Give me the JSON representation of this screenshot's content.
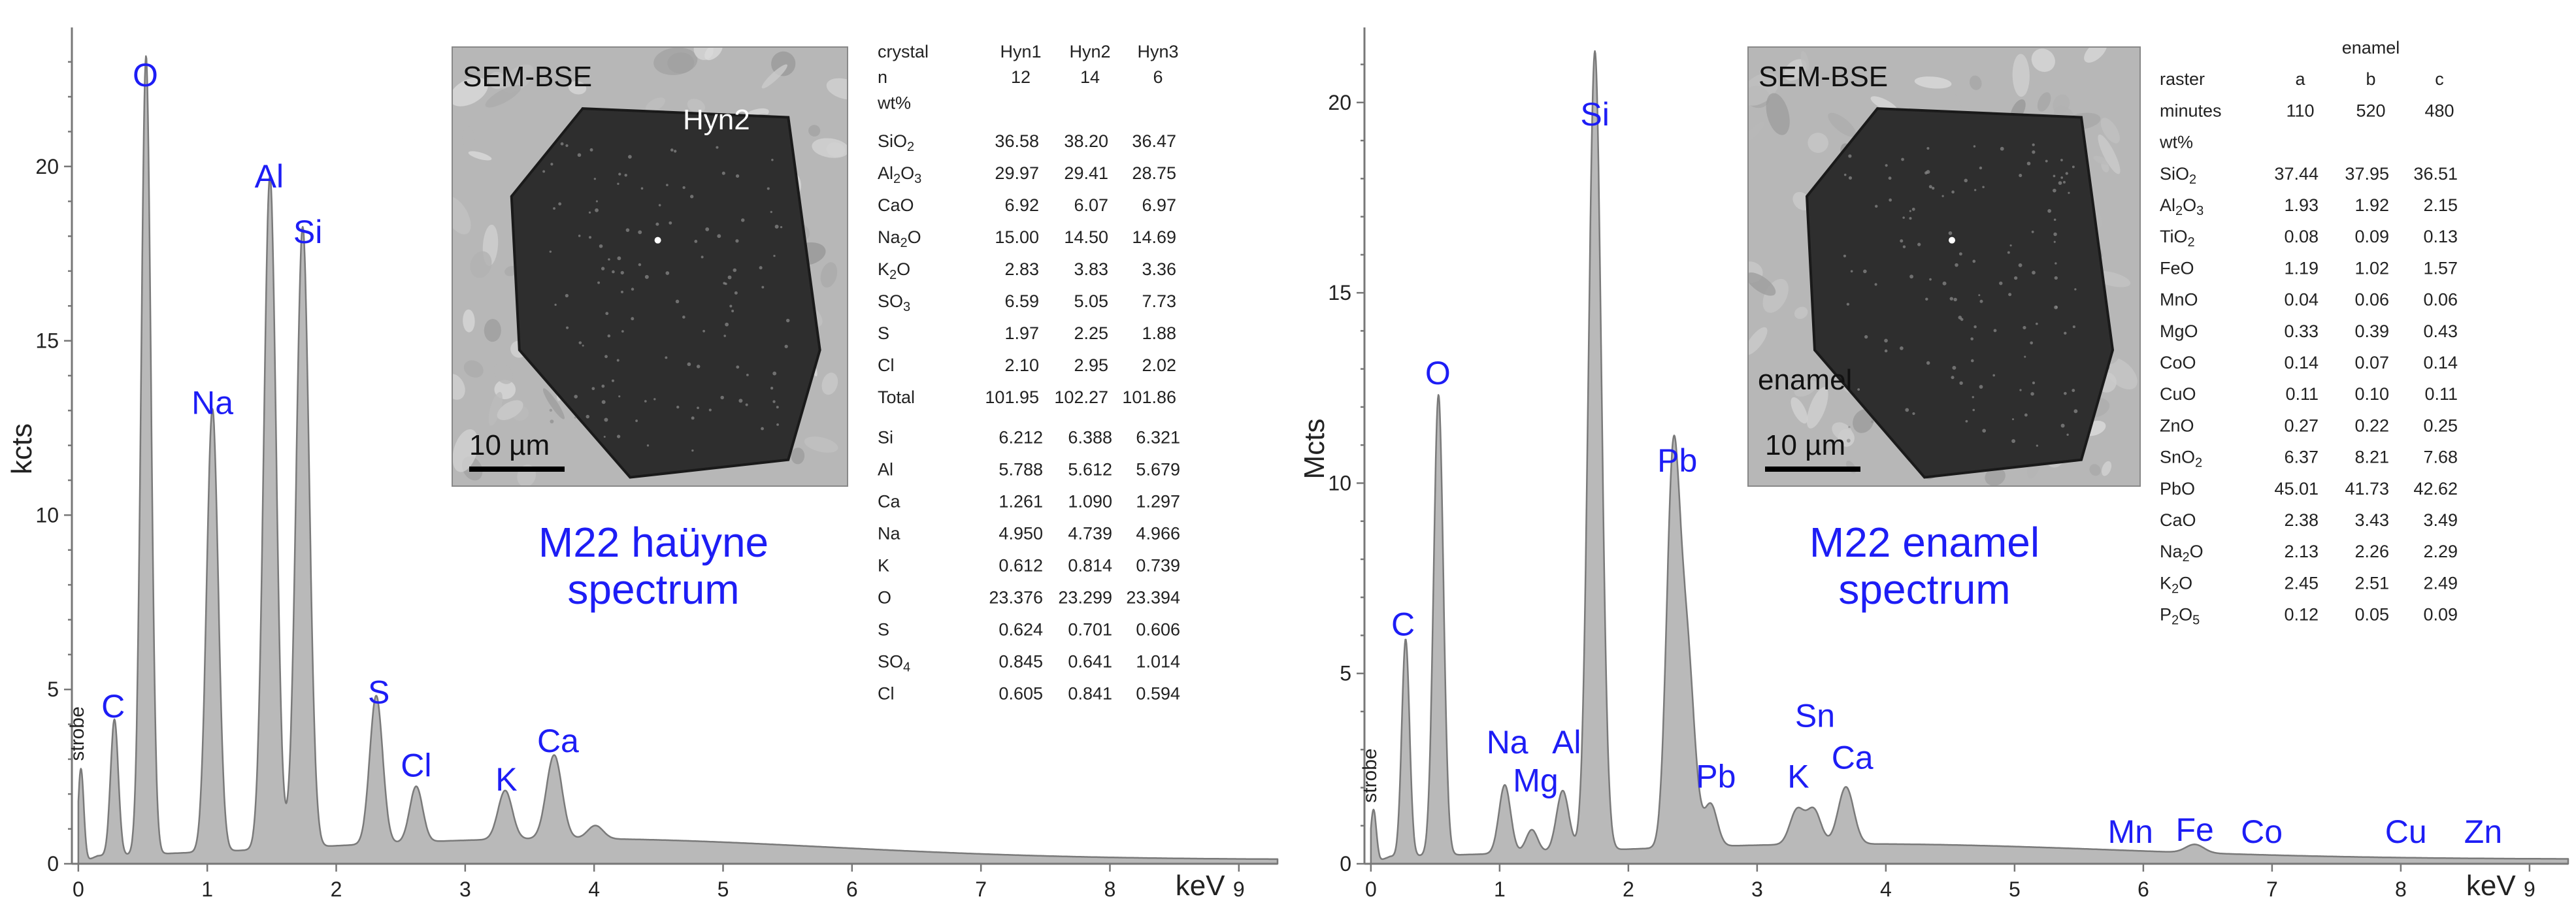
{
  "chart_data": [
    {
      "type": "area",
      "title": "M22 haüyne spectrum",
      "title_lines": [
        "M22 haüyne",
        "spectrum"
      ],
      "xlabel": "keV",
      "ylabel": "kcts",
      "xlim": [
        -0.05,
        9.3
      ],
      "ylim": [
        0,
        23.8
      ],
      "xticks": [
        0,
        1,
        2,
        3,
        4,
        5,
        6,
        7,
        8,
        9
      ],
      "yticks": [
        0,
        5,
        10,
        15,
        20
      ],
      "background": 0.6,
      "peaks": [
        {
          "x": 0.02,
          "y": 2.7,
          "w": 0.022
        },
        {
          "x": 0.28,
          "y": 3.9,
          "w": 0.03
        },
        {
          "x": 0.525,
          "y": 22.9,
          "w": 0.038
        },
        {
          "x": 1.04,
          "y": 12.7,
          "w": 0.045
        },
        {
          "x": 1.486,
          "y": 19.3,
          "w": 0.048
        },
        {
          "x": 1.74,
          "y": 17.8,
          "w": 0.05
        },
        {
          "x": 2.31,
          "y": 4.25,
          "w": 0.05
        },
        {
          "x": 2.62,
          "y": 1.6,
          "w": 0.05
        },
        {
          "x": 3.31,
          "y": 1.4,
          "w": 0.055
        },
        {
          "x": 3.69,
          "y": 2.4,
          "w": 0.06
        },
        {
          "x": 4.01,
          "y": 0.38,
          "w": 0.06
        }
      ],
      "labels": [
        {
          "text": "O",
          "x": 0.52,
          "y": 22.3
        },
        {
          "text": "C",
          "x": 0.27,
          "y": 4.2
        },
        {
          "text": "Na",
          "x": 1.04,
          "y": 12.9
        },
        {
          "text": "Al",
          "x": 1.48,
          "y": 19.4
        },
        {
          "text": "Si",
          "x": 1.78,
          "y": 17.8
        },
        {
          "text": "S",
          "x": 2.33,
          "y": 4.6
        },
        {
          "text": "Cl",
          "x": 2.62,
          "y": 2.5
        },
        {
          "text": "K",
          "x": 3.32,
          "y": 2.1
        },
        {
          "text": "Ca",
          "x": 3.72,
          "y": 3.2
        }
      ],
      "strobe_label": {
        "text": "strobe",
        "x": 0.0,
        "y": 2.95
      },
      "inset": {
        "title": "SEM-BSE",
        "grain_label": "Hyn2",
        "scale_bar": "10 µm"
      },
      "table": {
        "header": [
          "crystal",
          "Hyn1",
          "Hyn2",
          "Hyn3"
        ],
        "header2": [
          "n",
          "12",
          "14",
          "6"
        ],
        "unit": "wt%",
        "oxides": [
          {
            "name": "SiO",
            "sub": "2",
            "values": [
              "36.58",
              "38.20",
              "36.47"
            ]
          },
          {
            "name": "Al",
            "sub": "2",
            "name2": "O",
            "sub2": "3",
            "values": [
              "29.97",
              "29.41",
              "28.75"
            ]
          },
          {
            "name": "CaO",
            "values": [
              "6.92",
              "6.07",
              "6.97"
            ]
          },
          {
            "name": "Na",
            "sub": "2",
            "name2": "O",
            "values": [
              "15.00",
              "14.50",
              "14.69"
            ]
          },
          {
            "name": "K",
            "sub": "2",
            "name2": "O",
            "values": [
              "2.83",
              "3.83",
              "3.36"
            ]
          },
          {
            "name": "SO",
            "sub": "3",
            "values": [
              "6.59",
              "5.05",
              "7.73"
            ]
          },
          {
            "name": "S",
            "values": [
              "1.97",
              "2.25",
              "1.88"
            ]
          },
          {
            "name": "Cl",
            "values": [
              "2.10",
              "2.95",
              "2.02"
            ]
          },
          {
            "name": "Total",
            "values": [
              "101.95",
              "102.27",
              "101.86"
            ]
          }
        ],
        "atoms": [
          {
            "name": "Si",
            "values": [
              "6.212",
              "6.388",
              "6.321"
            ]
          },
          {
            "name": "Al",
            "values": [
              "5.788",
              "5.612",
              "5.679"
            ]
          },
          {
            "name": "Ca",
            "values": [
              "1.261",
              "1.090",
              "1.297"
            ]
          },
          {
            "name": "Na",
            "values": [
              "4.950",
              "4.739",
              "4.966"
            ]
          },
          {
            "name": "K",
            "values": [
              "0.612",
              "0.814",
              "0.739"
            ]
          },
          {
            "name": "O",
            "values": [
              "23.376",
              "23.299",
              "23.394"
            ]
          },
          {
            "name": "S",
            "values": [
              "0.624",
              "0.701",
              "0.606"
            ]
          },
          {
            "name": "SO",
            "sub": "4",
            "values": [
              "0.845",
              "0.641",
              "1.014"
            ]
          },
          {
            "name": "Cl",
            "values": [
              "0.605",
              "0.841",
              "0.594"
            ]
          }
        ]
      }
    },
    {
      "type": "area",
      "title": "M22 enamel spectrum",
      "title_lines": [
        "M22 enamel",
        "spectrum"
      ],
      "xlabel": "keV",
      "ylabel": "Mcts",
      "xlim": [
        -0.05,
        9.3
      ],
      "ylim": [
        0,
        21.8
      ],
      "xticks": [
        0,
        1,
        2,
        3,
        4,
        5,
        6,
        7,
        8,
        9
      ],
      "yticks": [
        0,
        5,
        10,
        15,
        20
      ],
      "background": 0.4,
      "peaks": [
        {
          "x": 0.02,
          "y": 1.4,
          "w": 0.022
        },
        {
          "x": 0.27,
          "y": 5.7,
          "w": 0.03
        },
        {
          "x": 0.525,
          "y": 12.1,
          "w": 0.038
        },
        {
          "x": 1.04,
          "y": 1.8,
          "w": 0.045
        },
        {
          "x": 1.25,
          "y": 0.6,
          "w": 0.045
        },
        {
          "x": 1.49,
          "y": 1.6,
          "w": 0.048
        },
        {
          "x": 1.74,
          "y": 21.0,
          "w": 0.05
        },
        {
          "x": 2.345,
          "y": 9.5,
          "w": 0.05
        },
        {
          "x": 2.45,
          "y": 5.3,
          "w": 0.06
        },
        {
          "x": 2.64,
          "y": 1.1,
          "w": 0.05
        },
        {
          "x": 3.31,
          "y": 0.9,
          "w": 0.055
        },
        {
          "x": 3.44,
          "y": 0.9,
          "w": 0.055
        },
        {
          "x": 3.69,
          "y": 1.5,
          "w": 0.06
        },
        {
          "x": 6.4,
          "y": 0.22,
          "w": 0.07
        }
      ],
      "labels": [
        {
          "text": "O",
          "x": 0.52,
          "y": 12.6
        },
        {
          "text": "C",
          "x": 0.25,
          "y": 6.0
        },
        {
          "text": "Si",
          "x": 1.74,
          "y": 19.4
        },
        {
          "text": "Pb",
          "x": 2.38,
          "y": 10.3
        },
        {
          "text": "Na",
          "x": 1.06,
          "y": 2.9
        },
        {
          "text": "Mg",
          "x": 1.28,
          "y": 1.9
        },
        {
          "text": "Al",
          "x": 1.52,
          "y": 2.9
        },
        {
          "text": "Pb",
          "x": 2.68,
          "y": 2.0
        },
        {
          "text": "K",
          "x": 3.32,
          "y": 2.0
        },
        {
          "text": "Sn",
          "x": 3.45,
          "y": 3.6
        },
        {
          "text": "Ca",
          "x": 3.74,
          "y": 2.5
        },
        {
          "text": "Mn",
          "x": 5.9,
          "y": 0.55
        },
        {
          "text": "Fe",
          "x": 6.4,
          "y": 0.6
        },
        {
          "text": "Co",
          "x": 6.92,
          "y": 0.55
        },
        {
          "text": "Cu",
          "x": 8.04,
          "y": 0.55
        },
        {
          "text": "Zn",
          "x": 8.64,
          "y": 0.55
        }
      ],
      "strobe_label": {
        "text": "strobe",
        "x": 0.0,
        "y": 1.6
      },
      "inset": {
        "title": "SEM-BSE",
        "grain_label": "enamel",
        "scale_bar": "10 µm"
      },
      "table": {
        "header_top": "enamel",
        "header": [
          "raster",
          "a",
          "b",
          "c"
        ],
        "header2": [
          "minutes",
          "110",
          "520",
          "480"
        ],
        "unit": "wt%",
        "oxides": [
          {
            "name": "SiO",
            "sub": "2",
            "values": [
              "37.44",
              "37.95",
              "36.51"
            ]
          },
          {
            "name": "Al",
            "sub": "2",
            "name2": "O",
            "sub2": "3",
            "values": [
              "1.93",
              "1.92",
              "2.15"
            ]
          },
          {
            "name": "TiO",
            "sub": "2",
            "values": [
              "0.08",
              "0.09",
              "0.13"
            ]
          },
          {
            "name": "FeO",
            "values": [
              "1.19",
              "1.02",
              "1.57"
            ]
          },
          {
            "name": "MnO",
            "values": [
              "0.04",
              "0.06",
              "0.06"
            ]
          },
          {
            "name": "MgO",
            "values": [
              "0.33",
              "0.39",
              "0.43"
            ]
          },
          {
            "name": "CoO",
            "values": [
              "0.14",
              "0.07",
              "0.14"
            ]
          },
          {
            "name": "CuO",
            "values": [
              "0.11",
              "0.10",
              "0.11"
            ]
          },
          {
            "name": "ZnO",
            "values": [
              "0.27",
              "0.22",
              "0.25"
            ]
          },
          {
            "name": "SnO",
            "sub": "2",
            "values": [
              "6.37",
              "8.21",
              "7.68"
            ]
          },
          {
            "name": "PbO",
            "values": [
              "45.01",
              "41.73",
              "42.62"
            ]
          },
          {
            "name": "CaO",
            "values": [
              "2.38",
              "3.43",
              "3.49"
            ]
          },
          {
            "name": "Na",
            "sub": "2",
            "name2": "O",
            "values": [
              "2.13",
              "2.26",
              "2.29"
            ]
          },
          {
            "name": "K",
            "sub": "2",
            "name2": "O",
            "values": [
              "2.45",
              "2.51",
              "2.49"
            ]
          },
          {
            "name": "P",
            "sub": "2",
            "name2": "O",
            "sub2": "5",
            "values": [
              "0.12",
              "0.05",
              "0.09"
            ]
          }
        ],
        "atoms": []
      }
    }
  ],
  "colors": {
    "label": "#1d1df5",
    "fill": "#b9b9b9",
    "stroke": "#7a7a7a"
  }
}
